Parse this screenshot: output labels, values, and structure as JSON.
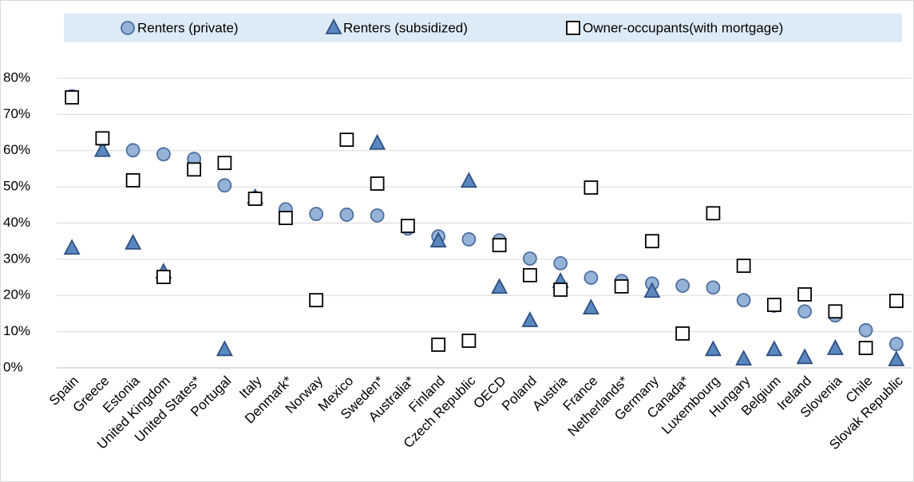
{
  "chart_data": {
    "type": "scatter",
    "categories": [
      "Spain",
      "Greece",
      "Estonia",
      "United Kingdom",
      "United States*",
      "Portugal",
      "Italy",
      "Denmark*",
      "Norway",
      "Mexico",
      "Sweden*",
      "Australia*",
      "Finland",
      "Czech Republic",
      "OECD",
      "Poland",
      "Austria",
      "France",
      "Netherlands*",
      "Germany",
      "Canada*",
      "Luxembourg",
      "Hungary",
      "Belgium",
      "Ireland",
      "Slovenia",
      "Chile",
      "Slovak Republic"
    ],
    "series": [
      {
        "name": "Renters (private)",
        "marker": "circle",
        "color": "#95b3d7",
        "edge": "#4f6f9f",
        "values": [
          75,
          63,
          60.1,
          59,
          57.7,
          50.4,
          46.9,
          43.8,
          42.5,
          42.3,
          42.1,
          38.5,
          36.3,
          35.5,
          35.2,
          30.2,
          28.9,
          24.9,
          24,
          23.3,
          22.7,
          22.2,
          18.7,
          17.2,
          15.6,
          14.5,
          10.4,
          6.6
        ]
      },
      {
        "name": "Renters (subsidized)",
        "marker": "triangle",
        "color": "#5b87c0",
        "edge": "#2e4f7f",
        "values": [
          33,
          60,
          34.4,
          26.4,
          null,
          5,
          47,
          null,
          null,
          null,
          62,
          null,
          35,
          51.5,
          22.2,
          13,
          23.8,
          16.5,
          null,
          21.1,
          null,
          5,
          2.4,
          5,
          2.8,
          5.3,
          null,
          2.2
        ]
      },
      {
        "name": "Owner-occupants(with mortgage)",
        "marker": "square",
        "color": "#ffffff",
        "edge": "#000000",
        "values": [
          74.7,
          63.4,
          51.8,
          25.1,
          54.8,
          56.6,
          46.7,
          41.4,
          18.7,
          63,
          50.9,
          39.2,
          6.4,
          7.5,
          33.9,
          25.6,
          21.6,
          49.8,
          22.5,
          35,
          9.5,
          42.7,
          28.2,
          17.4,
          20.3,
          15.6,
          5.5,
          18.5
        ]
      }
    ],
    "ylim": [
      0,
      80
    ],
    "yticks": [
      {
        "value": 0,
        "label": "0%"
      },
      {
        "value": 10,
        "label": "10%"
      },
      {
        "value": 20,
        "label": "20%"
      },
      {
        "value": 30,
        "label": "30%"
      },
      {
        "value": 40,
        "label": "40%"
      },
      {
        "value": 50,
        "label": "50%"
      },
      {
        "value": 60,
        "label": "60%"
      },
      {
        "value": 70,
        "label": "70%"
      },
      {
        "value": 80,
        "label": "80%"
      }
    ],
    "grid": true,
    "legend": "top"
  }
}
